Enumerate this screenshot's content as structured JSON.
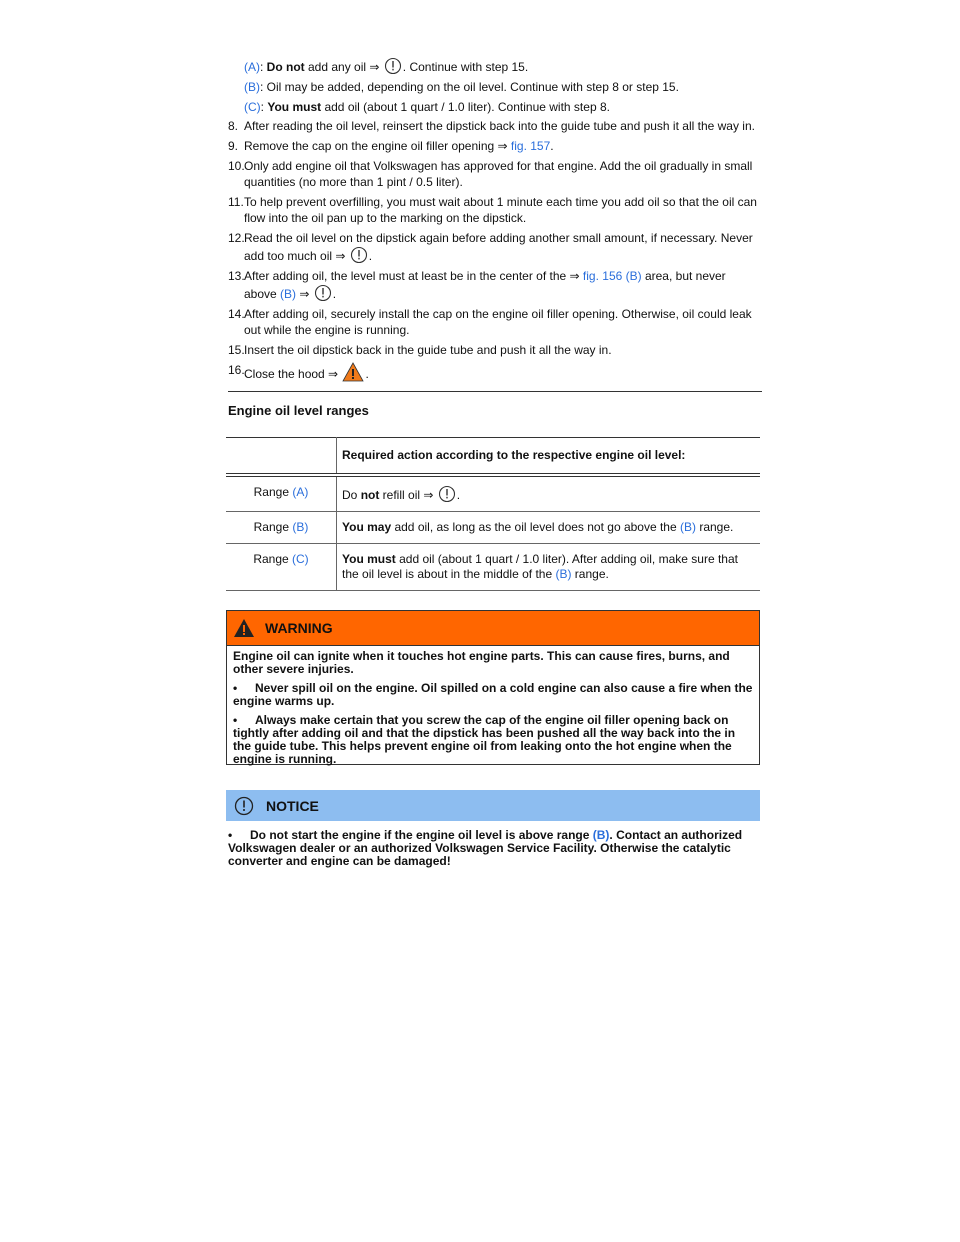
{
  "steps_top": [
    {
      "runs": [
        {
          "link": "(A)"
        },
        {
          "text": ": "
        },
        {
          "bold": "Do not"
        },
        {
          "text": " add any oil ⇒ "
        },
        {
          "icon": "notice"
        },
        {
          "text": ". Continue with step 15."
        }
      ]
    },
    {
      "runs": [
        {
          "link": "(B)"
        },
        {
          "text": ": Oil may be added, depending on the oil level. Continue with step 8 or step 15."
        }
      ]
    },
    {
      "runs": [
        {
          "link": "(C)"
        },
        {
          "text": ": "
        },
        {
          "bold": "You must"
        },
        {
          "text": " add oil (about 1 quart / 1.0 liter). Continue with step 8."
        }
      ]
    }
  ],
  "steps": [
    {
      "num": "8.",
      "runs": [
        {
          "text": "After reading the oil level, reinsert the dipstick back into the guide tube and push it all the way in."
        }
      ]
    },
    {
      "num": "9.",
      "runs": [
        {
          "text": "Remove the cap on the engine oil filler opening ⇒ "
        },
        {
          "link": "fig. 157"
        },
        {
          "text": "."
        }
      ]
    },
    {
      "num": "10.",
      "runs": [
        {
          "text": "Only add engine oil that Volkswagen has approved for that engine. Add the oil gradually in small quantities (no more than 1 pint / 0.5 liter)."
        }
      ]
    },
    {
      "num": "11.",
      "runs": [
        {
          "text": "To help prevent overfilling, you must wait about 1 minute each time you add oil so that the oil can flow into the oil pan up to the marking on the dipstick."
        }
      ]
    },
    {
      "num": "12.",
      "runs": [
        {
          "text": "Read the oil level on the dipstick again before adding another small amount, if necessary. Never add too much oil ⇒ "
        },
        {
          "icon": "notice"
        },
        {
          "text": "."
        }
      ]
    },
    {
      "num": "13.",
      "runs": [
        {
          "text": "After adding oil, the level must at least be in the center of the ⇒ "
        },
        {
          "link": "fig. 156 (B)"
        },
        {
          "text": " area, but never above "
        },
        {
          "link": "(B)"
        },
        {
          "text": " ⇒ "
        },
        {
          "icon": "notice"
        },
        {
          "text": "."
        }
      ]
    },
    {
      "num": "14.",
      "runs": [
        {
          "text": "After adding oil, securely install the cap on the engine oil filler opening. Otherwise, oil could leak out while the engine is running."
        }
      ]
    },
    {
      "num": "15.",
      "runs": [
        {
          "text": "Insert the oil dipstick back in the guide tube and push it all the way in."
        }
      ]
    },
    {
      "num": "16.",
      "runs": [
        {
          "text": "Close the hood ⇒ "
        },
        {
          "icon": "warning"
        },
        {
          "text": "."
        }
      ]
    }
  ],
  "section_title": "Engine oil level ranges",
  "table": {
    "header": "Required action according to the respective engine oil level:",
    "rows": [
      {
        "range": [
          {
            "text": "Range "
          },
          {
            "link": "(A)"
          }
        ],
        "action": [
          {
            "text": "Do "
          },
          {
            "bold": "not"
          },
          {
            "text": " refill oil ⇒ "
          },
          {
            "icon": "notice"
          },
          {
            "text": "."
          }
        ]
      },
      {
        "range": [
          {
            "text": "Range "
          },
          {
            "link": "(B)"
          }
        ],
        "action": [
          {
            "bold": "You may"
          },
          {
            "text": " add oil, as long as the oil level does not go above the "
          },
          {
            "link": "(B)"
          },
          {
            "text": " range."
          }
        ]
      },
      {
        "range": [
          {
            "text": "Range "
          },
          {
            "link": "(C)"
          }
        ],
        "action": [
          {
            "bold": "You must"
          },
          {
            "text": " add oil (about 1 quart / 1.0 liter). After adding oil, make sure that the oil level is about in the middle of the "
          },
          {
            "link": "(B)"
          },
          {
            "text": " range."
          }
        ]
      }
    ]
  },
  "warning": {
    "title": "WARNING",
    "intro": "Engine oil can ignite when it touches hot engine parts. This can cause fires, burns, and other severe injuries.",
    "bullets": [
      {
        "bullet": "•",
        "runs": [
          {
            "bold": "Never spill oil on the engine. Oil spilled on a cold engine can also cause a fire when the engine warms up."
          }
        ]
      },
      {
        "bullet": "•",
        "runs": [
          {
            "bold": "Always make certain that you screw the cap of the engine oil filler opening back on tightly after adding oil and that the dipstick has been pushed all the way back into the in the guide tube. This helps prevent engine oil from leaking onto the hot engine when the engine is running."
          }
        ]
      }
    ]
  },
  "notice": {
    "title": "NOTICE",
    "bullets": [
      {
        "bullet": "•",
        "runs": [
          {
            "bold": "Do not start the engine if the engine oil level is above range "
          },
          {
            "link": "(B)"
          },
          {
            "bold": ". Contact an authorized Volkswagen dealer or an authorized Volkswagen Service Facility. Otherwise the catalytic converter and engine can be damaged!"
          }
        ]
      }
    ]
  }
}
